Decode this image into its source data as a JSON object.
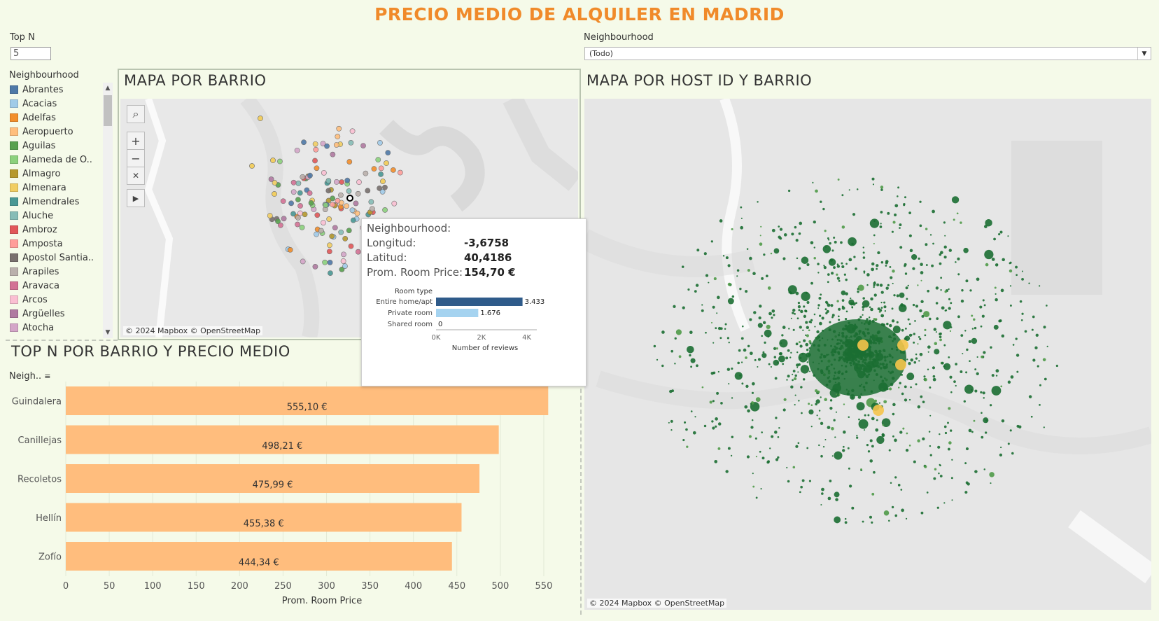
{
  "title": "PRECIO MEDIO DE ALQUILER EN MADRID",
  "top_n": {
    "label": "Top N",
    "value": "5"
  },
  "neighbourhood_filter": {
    "label": "Neighbourhood",
    "value": "(Todo)"
  },
  "legend": {
    "title": "Neighbourhood",
    "items": [
      {
        "label": "Abrantes",
        "color": "#4e79a7"
      },
      {
        "label": "Acacias",
        "color": "#a0cbe8"
      },
      {
        "label": "Adelfas",
        "color": "#f28e2b"
      },
      {
        "label": "Aeropuerto",
        "color": "#ffbe7d"
      },
      {
        "label": "Aguilas",
        "color": "#59a14f"
      },
      {
        "label": "Alameda de O..",
        "color": "#8cd17d"
      },
      {
        "label": "Almagro",
        "color": "#b6992d"
      },
      {
        "label": "Almenara",
        "color": "#f1ce63"
      },
      {
        "label": "Almendrales",
        "color": "#499894"
      },
      {
        "label": "Aluche",
        "color": "#86bcb6"
      },
      {
        "label": "Ambroz",
        "color": "#e15759"
      },
      {
        "label": "Amposta",
        "color": "#ff9d9a"
      },
      {
        "label": "Apostol Santia..",
        "color": "#79706e"
      },
      {
        "label": "Arapiles",
        "color": "#bab0ac"
      },
      {
        "label": "Aravaca",
        "color": "#d37295"
      },
      {
        "label": "Arcos",
        "color": "#fabfd2"
      },
      {
        "label": "Argüelles",
        "color": "#b07aa1"
      },
      {
        "label": "Atocha",
        "color": "#d4a6c8"
      }
    ]
  },
  "map1": {
    "title": "MAPA POR BARRIO",
    "attribution": "© 2024 Mapbox © OpenStreetMap",
    "tools": [
      "search-icon",
      "zoom-in-icon",
      "zoom-out-icon",
      "pin-clear-icon",
      "play-icon"
    ]
  },
  "map2": {
    "title": "MAPA POR HOST ID Y BARRIO",
    "attribution": "© 2024 Mapbox © OpenStreetMap"
  },
  "tooltip": {
    "neighbourhood_label": "Neighbourhood:",
    "rows": [
      {
        "label": "Longitud:",
        "value": "-3,6758"
      },
      {
        "label": "Latitud:",
        "value": "40,4186"
      },
      {
        "label": "Prom. Room Price:",
        "value": "154,70 €"
      }
    ],
    "mini_chart": {
      "header": "Room type",
      "xlabel": "Number of reviews",
      "ticks": [
        "0K",
        "2K",
        "4K"
      ],
      "max": 4000,
      "bars": [
        {
          "label": "Entire home/apt",
          "value": 3433,
          "display": "3.433",
          "color": "#2f5b8a"
        },
        {
          "label": "Private room",
          "value": 1676,
          "display": "1.676",
          "color": "#a5d3f0"
        },
        {
          "label": "Shared room",
          "value": 0,
          "display": "0",
          "color": "#a5d3f0"
        }
      ]
    }
  },
  "bar_chart": {
    "title": "TOP N POR BARRIO Y PRECIO MEDIO",
    "column_header": "Neigh..",
    "chart_data": {
      "type": "bar",
      "orientation": "horizontal",
      "categories": [
        "Guindalera",
        "Canillejas",
        "Recoletos",
        "Hellín",
        "Zofío"
      ],
      "values": [
        555.1,
        498.21,
        475.99,
        455.38,
        444.34
      ],
      "data_labels": [
        "555,10 €",
        "498,21 €",
        "475,99 €",
        "455,38 €",
        "444,34 €"
      ],
      "xlabel": "Prom. Room Price",
      "xlim": [
        0,
        575
      ],
      "xticks": [
        "0",
        "50",
        "100",
        "150",
        "200",
        "250",
        "300",
        "350",
        "400",
        "450",
        "500",
        "550"
      ],
      "bar_color": "#ffbd7d"
    }
  }
}
